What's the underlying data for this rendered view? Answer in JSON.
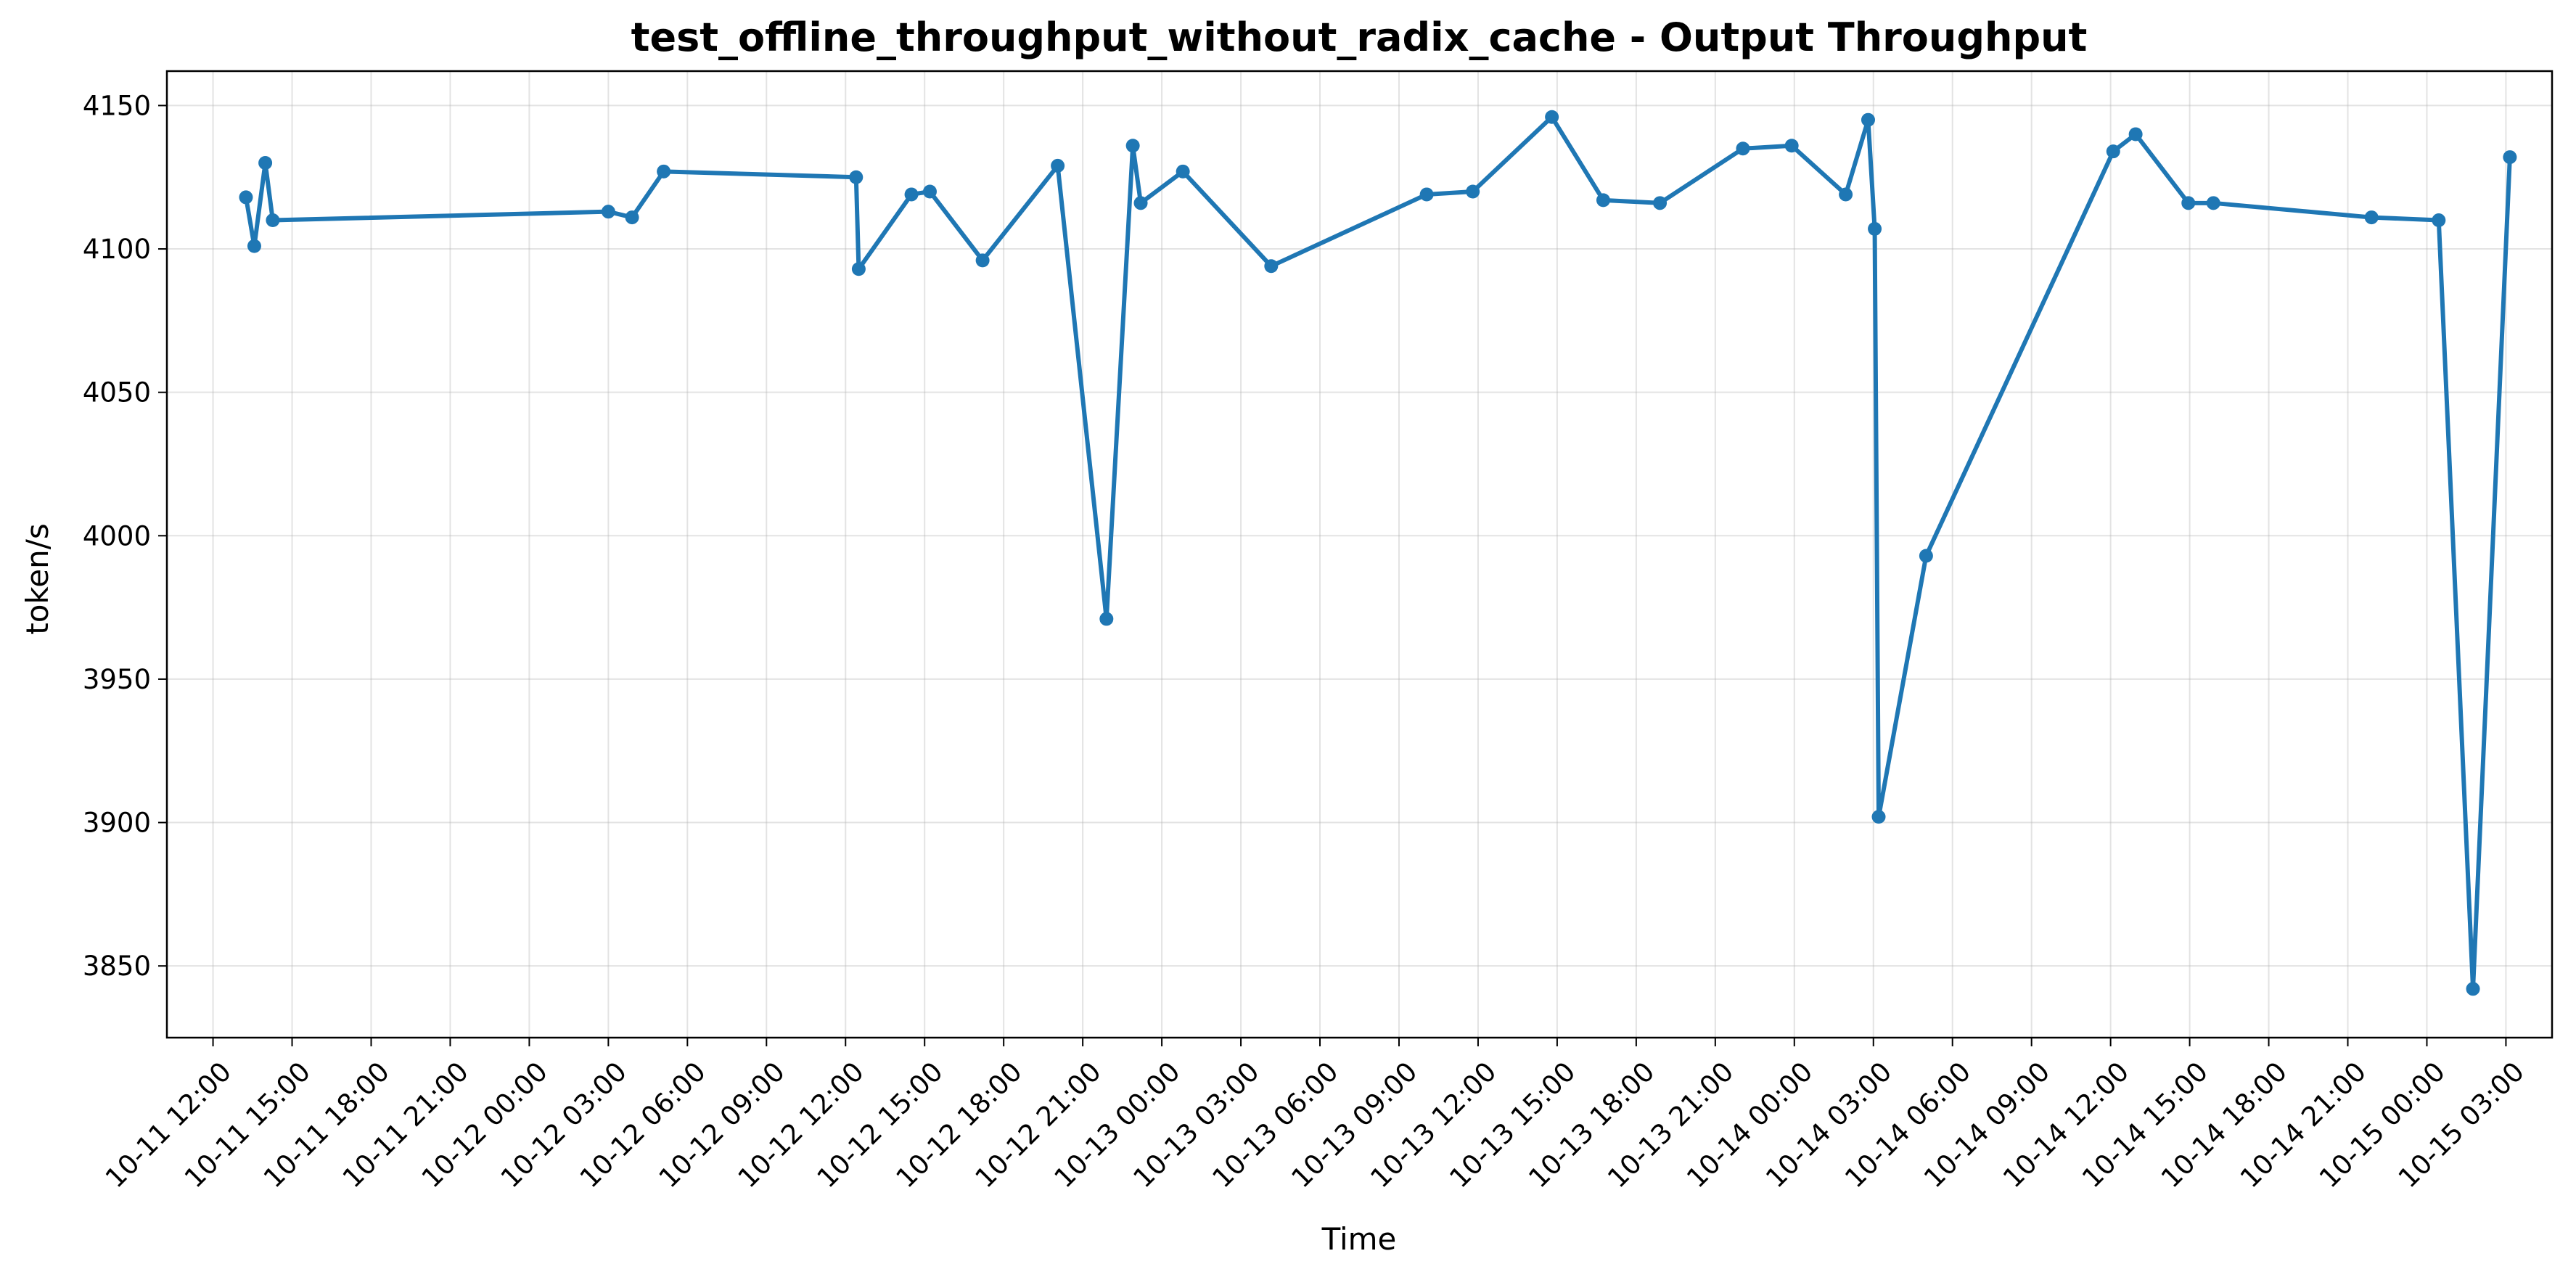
{
  "chart_data": {
    "type": "line",
    "title": "test_offline_throughput_without_radix_cache - Output Throughput",
    "xlabel": "Time",
    "ylabel": "token/s",
    "x_axis": "datetime",
    "xlim": [
      "2024-10-11T10:15",
      "2024-10-15T04:45"
    ],
    "ylim": [
      3825,
      4162
    ],
    "grid": true,
    "line_color": "#1f77b4",
    "x_ticks": [
      "2024-10-11T12:00",
      "2024-10-11T15:00",
      "2024-10-11T18:00",
      "2024-10-11T21:00",
      "2024-10-12T00:00",
      "2024-10-12T03:00",
      "2024-10-12T06:00",
      "2024-10-12T09:00",
      "2024-10-12T12:00",
      "2024-10-12T15:00",
      "2024-10-12T18:00",
      "2024-10-12T21:00",
      "2024-10-13T00:00",
      "2024-10-13T03:00",
      "2024-10-13T06:00",
      "2024-10-13T09:00",
      "2024-10-13T12:00",
      "2024-10-13T15:00",
      "2024-10-13T18:00",
      "2024-10-13T21:00",
      "2024-10-14T00:00",
      "2024-10-14T03:00",
      "2024-10-14T06:00",
      "2024-10-14T09:00",
      "2024-10-14T12:00",
      "2024-10-14T15:00",
      "2024-10-14T18:00",
      "2024-10-14T21:00",
      "2024-10-15T00:00",
      "2024-10-15T03:00"
    ],
    "x_tick_labels": [
      "10-11 12:00",
      "10-11 15:00",
      "10-11 18:00",
      "10-11 21:00",
      "10-12 00:00",
      "10-12 03:00",
      "10-12 06:00",
      "10-12 09:00",
      "10-12 12:00",
      "10-12 15:00",
      "10-12 18:00",
      "10-12 21:00",
      "10-13 00:00",
      "10-13 03:00",
      "10-13 06:00",
      "10-13 09:00",
      "10-13 12:00",
      "10-13 15:00",
      "10-13 18:00",
      "10-13 21:00",
      "10-14 00:00",
      "10-14 03:00",
      "10-14 06:00",
      "10-14 09:00",
      "10-14 12:00",
      "10-14 15:00",
      "10-14 18:00",
      "10-14 21:00",
      "10-15 00:00",
      "10-15 03:00"
    ],
    "y_ticks": [
      3850,
      3900,
      3950,
      4000,
      4050,
      4100,
      4150
    ],
    "x": [
      "2024-10-11T13:15",
      "2024-10-11T13:34",
      "2024-10-11T13:59",
      "2024-10-11T14:16",
      "2024-10-12T03:00",
      "2024-10-12T03:54",
      "2024-10-12T05:06",
      "2024-10-12T12:24",
      "2024-10-12T12:30",
      "2024-10-12T14:30",
      "2024-10-12T15:12",
      "2024-10-12T17:12",
      "2024-10-12T20:03",
      "2024-10-12T21:54",
      "2024-10-12T22:54",
      "2024-10-12T23:12",
      "2024-10-13T00:48",
      "2024-10-13T04:09",
      "2024-10-13T10:03",
      "2024-10-13T11:48",
      "2024-10-13T14:48",
      "2024-10-13T16:45",
      "2024-10-13T18:54",
      "2024-10-13T22:03",
      "2024-10-13T23:54",
      "2024-10-14T01:57",
      "2024-10-14T02:48",
      "2024-10-14T03:03",
      "2024-10-14T03:12",
      "2024-10-14T05:00",
      "2024-10-14T12:06",
      "2024-10-14T12:57",
      "2024-10-14T14:57",
      "2024-10-14T15:54",
      "2024-10-14T21:54",
      "2024-10-15T00:27",
      "2024-10-15T01:45",
      "2024-10-15T03:09"
    ],
    "y": [
      4118,
      4101,
      4130,
      4110,
      4113,
      4111,
      4127,
      4125,
      4093,
      4119,
      4120,
      4096,
      4129,
      3971,
      4136,
      4116,
      4127,
      4094,
      4119,
      4120,
      4146,
      4117,
      4116,
      4135,
      4136,
      4119,
      4145,
      4107,
      3902,
      3993,
      4134,
      4140,
      4116,
      4116,
      4111,
      4110,
      3842,
      4132
    ]
  }
}
